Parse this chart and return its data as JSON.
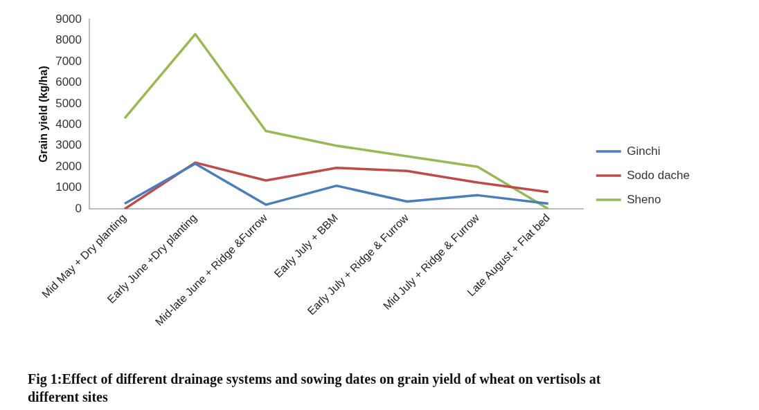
{
  "chart_data": {
    "type": "line",
    "ylabel": "Grain yield (kg/ha)",
    "categories": [
      "Mid May + Dry planting",
      "Early June +Dry planting",
      "Mid-late June + Ridge &Furrow",
      "Early July + BBM",
      "Early July + Ridge & Furrow",
      "Mid July + Ridge & Furrow",
      "Late August + Flat bed"
    ],
    "series": [
      {
        "name": "Ginchi",
        "color": "#4a7ebb",
        "values": [
          250,
          2150,
          200,
          1100,
          350,
          650,
          250
        ]
      },
      {
        "name": "Sodo dache",
        "color": "#be4b48",
        "values": [
          0,
          2200,
          1350,
          1950,
          1800,
          1250,
          800
        ]
      },
      {
        "name": "Sheno",
        "color": "#98b954",
        "values": [
          4300,
          8300,
          3700,
          3000,
          2500,
          2000,
          0
        ]
      }
    ],
    "ylim": [
      0,
      9000
    ],
    "yticks": [
      0,
      1000,
      2000,
      3000,
      4000,
      5000,
      6000,
      7000,
      8000,
      9000
    ],
    "grid": false,
    "legend": "right",
    "marker": "none",
    "line_style": "solid",
    "annotations": [
      "Fig 1:Effect of different drainage systems and sowing dates on grain yield of wheat on vertisols at different sites"
    ]
  }
}
